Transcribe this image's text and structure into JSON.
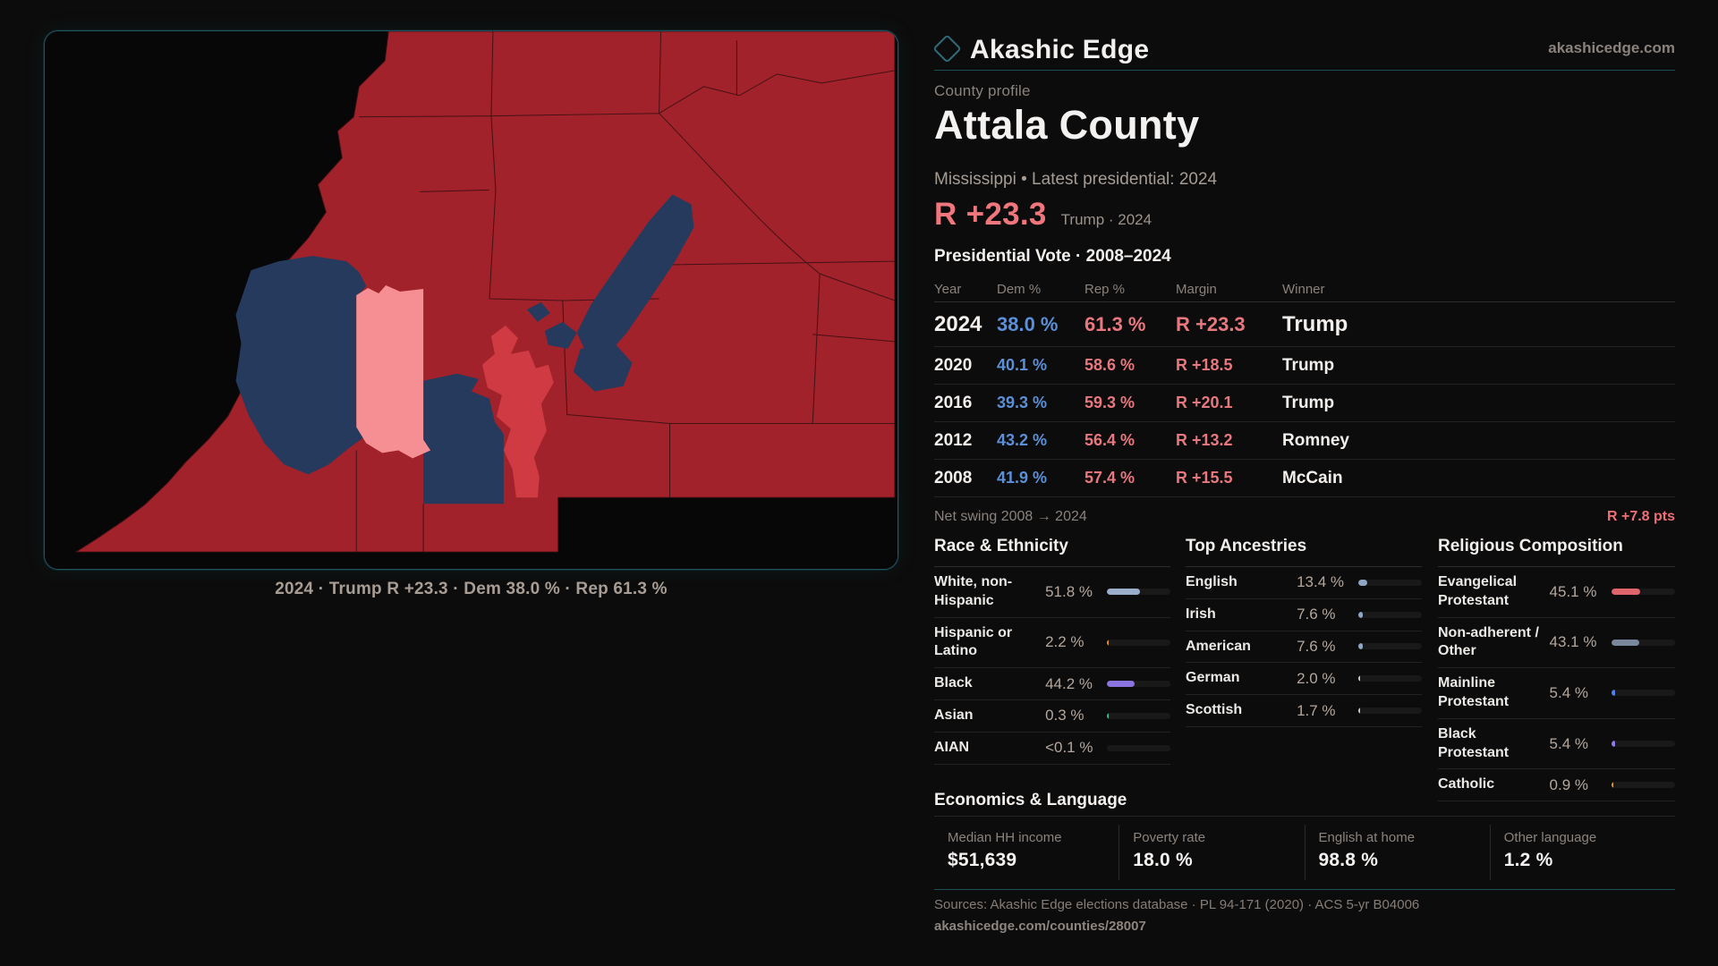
{
  "brand": {
    "name": "Akashic Edge",
    "domain": "akashicedge.com",
    "logo_icon": "diamond-outline-icon",
    "accent_teal": "#1d4e58"
  },
  "profile": {
    "eyebrow": "County profile",
    "title": "Attala County",
    "subtitle": "Mississippi • Latest presidential: 2024",
    "margin_value": "R +23.3",
    "margin_context": "Trump · 2024",
    "margin_color": "#f0767d"
  },
  "table": {
    "title": "Presidential Vote · 2008–2024",
    "columns": [
      "Year",
      "Dem %",
      "Rep %",
      "Margin",
      "Winner"
    ],
    "rows": [
      {
        "year": "2024",
        "dem": "38.0 %",
        "rep": "61.3 %",
        "margin": "R +23.3",
        "winner": "Trump",
        "latest": true
      },
      {
        "year": "2020",
        "dem": "40.1 %",
        "rep": "58.6 %",
        "margin": "R +18.5",
        "winner": "Trump",
        "latest": false
      },
      {
        "year": "2016",
        "dem": "39.3 %",
        "rep": "59.3 %",
        "margin": "R +20.1",
        "winner": "Trump",
        "latest": false
      },
      {
        "year": "2012",
        "dem": "43.2 %",
        "rep": "56.4 %",
        "margin": "R +13.2",
        "winner": "Romney",
        "latest": false
      },
      {
        "year": "2008",
        "dem": "41.9 %",
        "rep": "57.4 %",
        "margin": "R +15.5",
        "winner": "McCain",
        "latest": false
      }
    ],
    "dem_color": "#5b8fd8",
    "rep_color": "#e9787e",
    "net_swing_label": "Net swing 2008 → 2024",
    "net_swing_value": "R +7.8 pts"
  },
  "stats_sections": [
    {
      "title": "Race & Ethnicity",
      "rows": [
        {
          "label": "White, non-Hispanic",
          "value": "51.8 %",
          "pct": 51.8,
          "color": "#9aaecb"
        },
        {
          "label": "Hispanic or Latino",
          "value": "2.2 %",
          "pct": 2.2,
          "color": "#e0921c"
        },
        {
          "label": "Black",
          "value": "44.2 %",
          "pct": 44.2,
          "color": "#8b74e0"
        },
        {
          "label": "Asian",
          "value": "0.3 %",
          "pct": 0.3,
          "color": "#35c08a"
        },
        {
          "label": "AIAN",
          "value": "<0.1 %",
          "pct": 0,
          "color": "#555555"
        }
      ]
    },
    {
      "title": "Top Ancestries",
      "rows": [
        {
          "label": "English",
          "value": "13.4 %",
          "pct": 13.4,
          "color": "#8fa7c4"
        },
        {
          "label": "Irish",
          "value": "7.6 %",
          "pct": 7.6,
          "color": "#8fa7c4"
        },
        {
          "label": "American",
          "value": "7.6 %",
          "pct": 7.6,
          "color": "#8fa7c4"
        },
        {
          "label": "German",
          "value": "2.0 %",
          "pct": 2.0,
          "color": "#c6ccd6"
        },
        {
          "label": "Scottish",
          "value": "1.7 %",
          "pct": 1.7,
          "color": "#c6ccd6"
        }
      ]
    },
    {
      "title": "Religious Composition",
      "rows": [
        {
          "label": "Evangelical Protestant",
          "value": "45.1 %",
          "pct": 45.1,
          "color": "#e0646c"
        },
        {
          "label": "Non-adherent / Other",
          "value": "43.1 %",
          "pct": 43.1,
          "color": "#79879d"
        },
        {
          "label": "Mainline Protestant",
          "value": "5.4 %",
          "pct": 5.4,
          "color": "#4f82e8"
        },
        {
          "label": "Black Protestant",
          "value": "5.4 %",
          "pct": 5.4,
          "color": "#9379e8"
        },
        {
          "label": "Catholic",
          "value": "0.9 %",
          "pct": 0.9,
          "color": "#d9a31f"
        }
      ]
    }
  ],
  "economics": {
    "title": "Economics & Language",
    "stats": [
      {
        "label": "Median HH income",
        "value": "$51,639"
      },
      {
        "label": "Poverty rate",
        "value": "18.0 %"
      },
      {
        "label": "English at home",
        "value": "98.8 %"
      },
      {
        "label": "Other language",
        "value": "1.2 %"
      }
    ]
  },
  "map": {
    "caption": "2024 · Trump R +23.3 · Dem 38.0 % · Rep 61.3 %",
    "colors": {
      "rep": "#a1222a",
      "rep_light": "#cf3a43",
      "dem": "#263a5e",
      "highlight": "#f68f93",
      "line": "#3a0f13",
      "background": "#070707",
      "border": "#1f5560"
    }
  },
  "footer": {
    "sources": "Sources: Akashic Edge elections database · PL 94-171 (2020) · ACS 5-yr B04006",
    "permalink": "akashicedge.com/counties/28007"
  }
}
